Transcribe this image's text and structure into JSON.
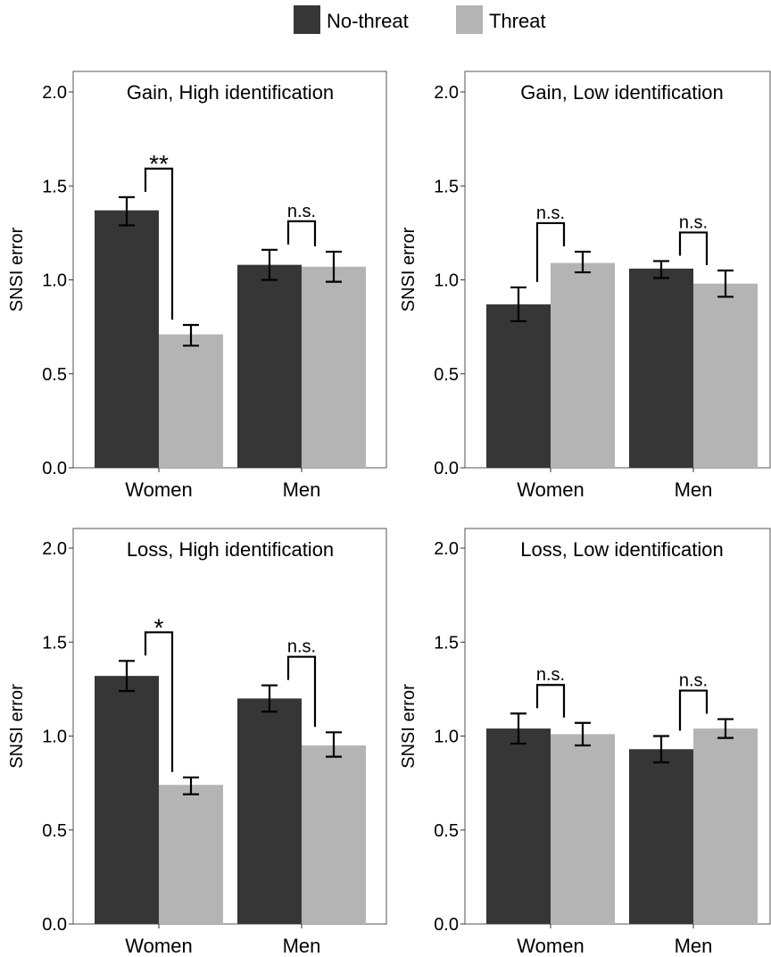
{
  "legend": {
    "items": [
      {
        "label": "No-threat",
        "color": "#363636"
      },
      {
        "label": "Threat",
        "color": "#b4b4b4"
      }
    ],
    "placement": "top"
  },
  "chart_data": [
    {
      "type": "bar",
      "title": "Gain, High identification",
      "ylabel": "SNSI error",
      "xlabel": "",
      "ylim": [
        0,
        2.0
      ],
      "yticks": [
        "0.0",
        "0.5",
        "1.0",
        "1.5",
        "2.0"
      ],
      "categories": [
        "Women",
        "Men"
      ],
      "series": [
        {
          "name": "No-threat",
          "color": "#363636",
          "values": [
            1.37,
            1.08
          ],
          "error_low": [
            1.29,
            1.0
          ],
          "error_high": [
            1.44,
            1.16
          ]
        },
        {
          "name": "Threat",
          "color": "#b4b4b4",
          "values": [
            0.71,
            1.07
          ],
          "error_low": [
            0.65,
            0.99
          ],
          "error_high": [
            0.76,
            1.15
          ]
        }
      ],
      "significance": [
        "**",
        "n.s."
      ]
    },
    {
      "type": "bar",
      "title": "Gain, Low identification",
      "ylabel": "SNSI error",
      "xlabel": "",
      "ylim": [
        0,
        2.0
      ],
      "yticks": [
        "0.0",
        "0.5",
        "1.0",
        "1.5",
        "2.0"
      ],
      "categories": [
        "Women",
        "Men"
      ],
      "series": [
        {
          "name": "No-threat",
          "color": "#363636",
          "values": [
            0.87,
            1.06
          ],
          "error_low": [
            0.78,
            1.01
          ],
          "error_high": [
            0.96,
            1.1
          ]
        },
        {
          "name": "Threat",
          "color": "#b4b4b4",
          "values": [
            1.09,
            0.98
          ],
          "error_low": [
            1.04,
            0.91
          ],
          "error_high": [
            1.15,
            1.05
          ]
        }
      ],
      "significance": [
        "n.s.",
        "n.s."
      ]
    },
    {
      "type": "bar",
      "title": "Loss, High identification",
      "ylabel": "SNSI error",
      "xlabel": "",
      "ylim": [
        0,
        2.0
      ],
      "yticks": [
        "0.0",
        "0.5",
        "1.0",
        "1.5",
        "2.0"
      ],
      "categories": [
        "Women",
        "Men"
      ],
      "series": [
        {
          "name": "No-threat",
          "color": "#363636",
          "values": [
            1.32,
            1.2
          ],
          "error_low": [
            1.24,
            1.13
          ],
          "error_high": [
            1.4,
            1.27
          ]
        },
        {
          "name": "Threat",
          "color": "#b4b4b4",
          "values": [
            0.74,
            0.95
          ],
          "error_low": [
            0.69,
            0.89
          ],
          "error_high": [
            0.78,
            1.02
          ]
        }
      ],
      "significance": [
        "*",
        "n.s."
      ]
    },
    {
      "type": "bar",
      "title": "Loss, Low identification",
      "ylabel": "SNSI error",
      "xlabel": "",
      "ylim": [
        0,
        2.0
      ],
      "yticks": [
        "0.0",
        "0.5",
        "1.0",
        "1.5",
        "2.0"
      ],
      "categories": [
        "Women",
        "Men"
      ],
      "series": [
        {
          "name": "No-threat",
          "color": "#363636",
          "values": [
            1.04,
            0.93
          ],
          "error_low": [
            0.96,
            0.86
          ],
          "error_high": [
            1.12,
            1.0
          ]
        },
        {
          "name": "Threat",
          "color": "#b4b4b4",
          "values": [
            1.01,
            1.04
          ],
          "error_low": [
            0.95,
            0.99
          ],
          "error_high": [
            1.07,
            1.09
          ]
        }
      ],
      "significance": [
        "n.s.",
        "n.s."
      ]
    }
  ]
}
